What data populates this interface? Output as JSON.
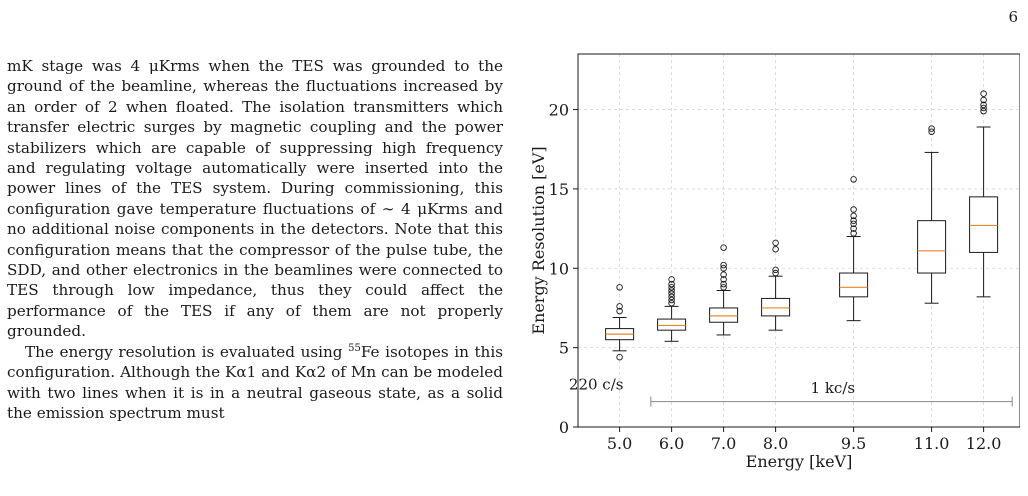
{
  "page_number": "6",
  "paragraphs": [
    "mK stage was 4 μKrms when the TES was grounded to the ground of the beamline, whereas the fluctuations increased by an order of 2 when floated. The isolation transmitters which transfer electric surges by magnetic coupling and the power stabilizers which are capable of suppressing high frequency and regulating voltage automatically were inserted into the power lines of the TES system. During commissioning, this configuration gave temperature fluctuations of ∼ 4 μKrms and no additional noise components in the detectors. Note that this configuration means that the compressor of the pulse tube, the SDD, and other electronics in the beamlines were connected to TES through low impedance, thus they could affect the performance of the TES if any of them are not properly grounded."
  ],
  "paragraph2": {
    "pre": "The energy resolution is evaluated using ",
    "sup": "55",
    "post": "Fe isotopes in this configuration. Although the Kα1 and Kα2 of Mn can be modeled with two lines when it is in a neutral gaseous state, as a solid the emission spectrum must"
  },
  "chart_data": {
    "type": "box",
    "xlabel": "Energy [keV]",
    "ylabel": "Energy Resolution [eV]",
    "ylim": [
      0,
      23.5
    ],
    "xlim": [
      4.2,
      12.7
    ],
    "yticks": [
      "0",
      "5",
      "10",
      "15",
      "20"
    ],
    "grid": true,
    "median_color": "#e8882a",
    "boxes": [
      {
        "x": 5.0,
        "label": "5.0",
        "whislo": 4.8,
        "q1": 5.5,
        "med": 5.85,
        "q3": 6.2,
        "whishi": 6.9,
        "fliers": [
          4.4,
          7.3,
          7.6,
          8.8
        ]
      },
      {
        "x": 6.0,
        "label": "6.0",
        "whislo": 5.4,
        "q1": 6.1,
        "med": 6.4,
        "q3": 6.8,
        "whishi": 7.6,
        "fliers": [
          7.8,
          8.0,
          8.2,
          8.4,
          8.6,
          8.8,
          9.0,
          9.3
        ]
      },
      {
        "x": 7.0,
        "label": "7.0",
        "whislo": 5.8,
        "q1": 6.6,
        "med": 7.0,
        "q3": 7.5,
        "whishi": 8.6,
        "fliers": [
          8.8,
          9.0,
          9.3,
          9.6,
          10.0,
          10.2,
          11.3
        ]
      },
      {
        "x": 8.0,
        "label": "8.0",
        "whislo": 6.1,
        "q1": 7.0,
        "med": 7.5,
        "q3": 8.1,
        "whishi": 9.5,
        "fliers": [
          9.7,
          9.9,
          11.2,
          11.6
        ]
      },
      {
        "x": 9.5,
        "label": "9.5",
        "whislo": 6.7,
        "q1": 8.2,
        "med": 8.8,
        "q3": 9.7,
        "whishi": 12.0,
        "fliers": [
          12.2,
          12.5,
          12.8,
          13.0,
          13.3,
          13.7,
          15.6
        ]
      },
      {
        "x": 11.0,
        "label": "11.0",
        "whislo": 7.8,
        "q1": 9.7,
        "med": 11.1,
        "q3": 13.0,
        "whishi": 17.3,
        "fliers": [
          18.6,
          18.8
        ]
      },
      {
        "x": 12.0,
        "label": "12.0",
        "whislo": 8.2,
        "q1": 11.0,
        "med": 12.7,
        "q3": 14.5,
        "whishi": 18.9,
        "fliers": [
          19.9,
          20.1,
          20.3,
          20.6,
          21.0
        ]
      }
    ],
    "annotations": [
      {
        "text": "220 c/s",
        "x": 4.55,
        "y": 2.35
      },
      {
        "text": "1 kc/s",
        "x": 9.1,
        "y": 2.15
      }
    ],
    "bracket": {
      "x0": 5.6,
      "x1": 12.55,
      "y": 1.6
    }
  }
}
